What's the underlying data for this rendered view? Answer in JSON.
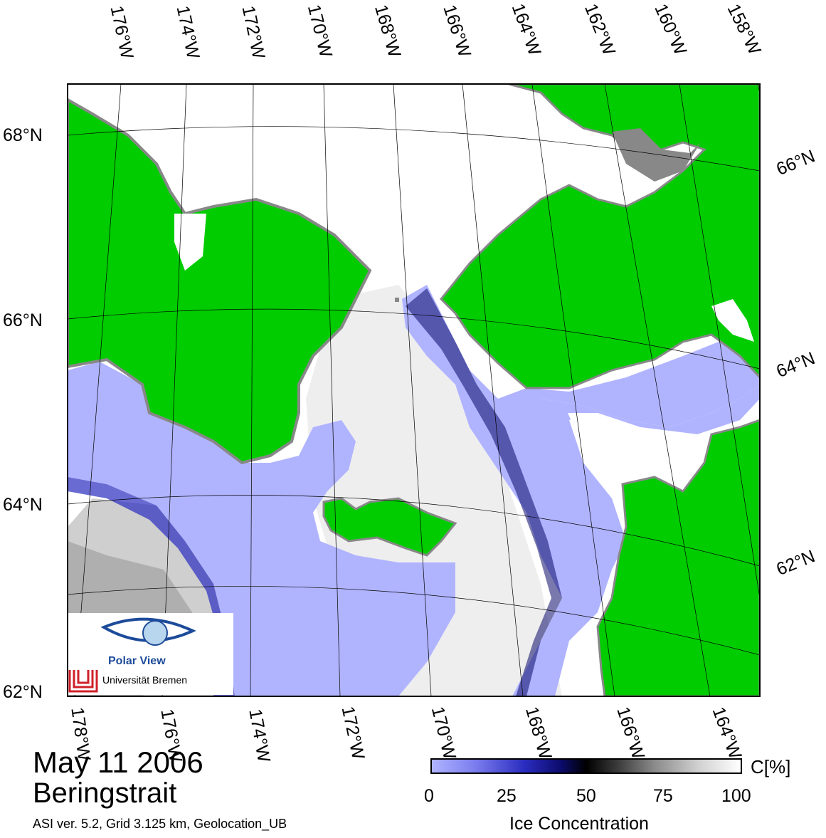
{
  "title": {
    "date": "May 11 2006",
    "region": "Beringstrait",
    "meta": "ASI ver. 5.2,  Grid 3.125 km, Geolocation_UB"
  },
  "top_lon_labels": [
    "176°W",
    "174°W",
    "172°W",
    "170°W",
    "168°W",
    "166°W",
    "164°W",
    "162°W",
    "160°W",
    "158°W"
  ],
  "bottom_lon_labels": [
    "178°W",
    "176°W",
    "174°W",
    "172°W",
    "170°W",
    "168°W",
    "166°W",
    "164°W"
  ],
  "left_lat_labels": [
    "68°N",
    "66°N",
    "64°N",
    "62°N"
  ],
  "right_lat_labels": [
    "66°N",
    "64°N",
    "62°N"
  ],
  "colorbar": {
    "unit": "C[%]",
    "ticks": [
      "0",
      "25",
      "50",
      "75",
      "100"
    ],
    "title": "Ice Concentration",
    "colors": [
      "#b0b4ff",
      "#2a2cc0",
      "#000000",
      "#8a8a8a",
      "#ffffff"
    ]
  },
  "legend_colors": {
    "land": "#00cc00",
    "coast": "#888888",
    "open_water": "#b0b4ff"
  },
  "logo": {
    "name": "Polar View",
    "institution": "Universität Bremen"
  }
}
